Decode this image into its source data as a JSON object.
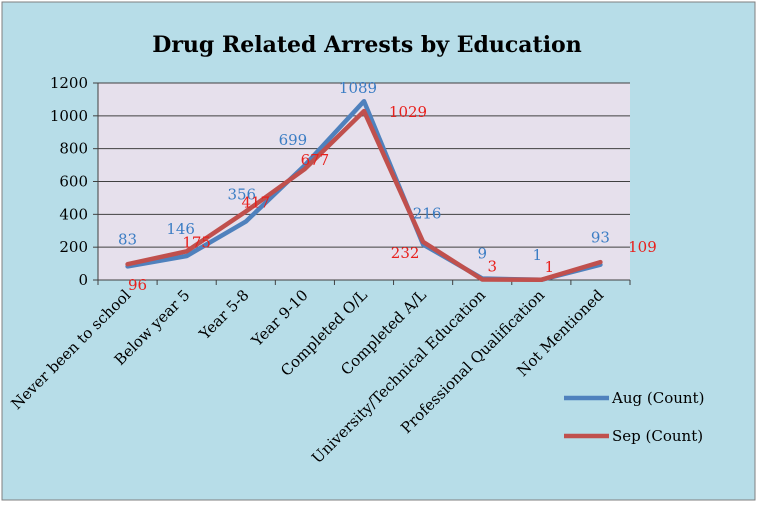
{
  "chart_data": {
    "type": "line",
    "title": "Drug Related Arrests by Education",
    "xlabel": "",
    "ylabel": "",
    "ylim": [
      0,
      1200
    ],
    "yticks": [
      0,
      200,
      400,
      600,
      800,
      1000,
      1200
    ],
    "grid": true,
    "legend_position": "right",
    "categories": [
      "Never been to school",
      "Below year 5",
      "Year 5-8",
      "Year 9-10",
      "Completed O/L",
      "Completed A/L",
      "University/Technical Education",
      "Professional Qualification",
      "Not Mentioned"
    ],
    "series": [
      {
        "name": "Aug  (Count)",
        "color": "#4F81BD",
        "label_color": "#3B7DC4",
        "values": [
          83,
          146,
          356,
          699,
          1089,
          216,
          9,
          1,
          93
        ]
      },
      {
        "name": "Sep (Count)",
        "color": "#C0504D",
        "label_color": "#E8201C",
        "values": [
          96,
          175,
          417,
          677,
          1029,
          232,
          3,
          1,
          109
        ]
      }
    ]
  },
  "style": {
    "frame_background": "#B7DDE8",
    "plot_background": "#E6E0EC",
    "gridline_color": "#404040"
  }
}
